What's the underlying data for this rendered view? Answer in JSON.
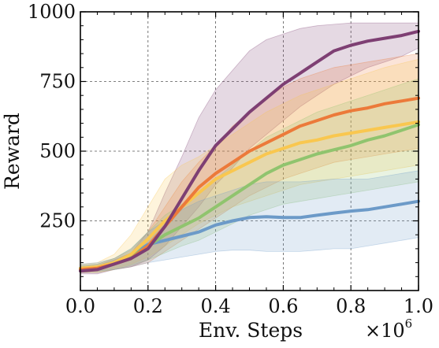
{
  "chart_data": {
    "type": "line",
    "title": "",
    "xlabel": "Env. Steps",
    "ylabel": "Reward",
    "x_multiplier_base": "×10",
    "x_multiplier_exp": "6",
    "xlim": [
      0.0,
      1.0
    ],
    "ylim": [
      0,
      1000
    ],
    "x_ticks": [
      0.0,
      0.2,
      0.4,
      0.6,
      0.8,
      1.0
    ],
    "x_tick_labels": [
      "0.0",
      "0.2",
      "0.4",
      "0.6",
      "0.8",
      "1.0"
    ],
    "y_ticks": [
      250,
      500,
      750,
      1000
    ],
    "y_tick_labels": [
      "250",
      "500",
      "750",
      "1000"
    ],
    "grid": true,
    "x": [
      0.0,
      0.05,
      0.1,
      0.15,
      0.2,
      0.25,
      0.3,
      0.35,
      0.4,
      0.45,
      0.5,
      0.55,
      0.6,
      0.65,
      0.7,
      0.75,
      0.8,
      0.85,
      0.9,
      0.95,
      1.0
    ],
    "series": [
      {
        "color": "#7e3f73",
        "values": [
          70,
          75,
          95,
          115,
          150,
          230,
          330,
          430,
          520,
          580,
          640,
          690,
          740,
          780,
          820,
          860,
          880,
          895,
          905,
          915,
          930
        ],
        "lower": [
          60,
          60,
          75,
          85,
          110,
          160,
          230,
          300,
          380,
          440,
          510,
          560,
          610,
          660,
          700,
          740,
          770,
          800,
          820,
          840,
          870
        ],
        "upper": [
          85,
          90,
          110,
          135,
          210,
          350,
          480,
          620,
          720,
          790,
          860,
          900,
          920,
          940,
          950,
          955,
          960,
          960,
          960,
          960,
          960
        ]
      },
      {
        "color": "#ec7a3a",
        "values": [
          75,
          80,
          95,
          115,
          160,
          230,
          300,
          370,
          420,
          460,
          500,
          530,
          560,
          590,
          610,
          630,
          645,
          655,
          670,
          680,
          690
        ],
        "lower": [
          65,
          65,
          75,
          85,
          100,
          140,
          180,
          220,
          260,
          300,
          340,
          370,
          400,
          420,
          440,
          460,
          470,
          480,
          490,
          500,
          510
        ],
        "upper": [
          90,
          95,
          115,
          145,
          210,
          300,
          390,
          460,
          520,
          590,
          640,
          690,
          730,
          760,
          780,
          800,
          810,
          820,
          830,
          840,
          850
        ]
      },
      {
        "color": "#f9c74f",
        "values": [
          80,
          85,
          100,
          130,
          185,
          250,
          300,
          350,
          400,
          430,
          460,
          490,
          510,
          530,
          540,
          555,
          565,
          575,
          585,
          595,
          605
        ],
        "lower": [
          70,
          70,
          80,
          95,
          120,
          160,
          200,
          240,
          270,
          300,
          320,
          340,
          360,
          380,
          390,
          400,
          410,
          420,
          430,
          440,
          450
        ],
        "upper": [
          95,
          100,
          130,
          200,
          300,
          400,
          450,
          480,
          520,
          560,
          600,
          640,
          670,
          700,
          720,
          740,
          760,
          780,
          800,
          815,
          830
        ]
      },
      {
        "color": "#90c46e",
        "values": [
          75,
          80,
          95,
          120,
          160,
          200,
          230,
          260,
          300,
          340,
          380,
          420,
          450,
          470,
          490,
          505,
          520,
          540,
          555,
          575,
          595
        ],
        "lower": [
          65,
          65,
          75,
          90,
          110,
          135,
          160,
          180,
          210,
          240,
          270,
          290,
          310,
          320,
          330,
          340,
          350,
          360,
          370,
          380,
          390
        ],
        "upper": [
          90,
          95,
          115,
          150,
          210,
          270,
          310,
          350,
          400,
          450,
          500,
          550,
          580,
          610,
          640,
          660,
          680,
          700,
          720,
          740,
          760
        ]
      },
      {
        "color": "#6c9ac8",
        "values": [
          80,
          85,
          100,
          125,
          165,
          180,
          195,
          210,
          235,
          250,
          262,
          265,
          262,
          262,
          270,
          278,
          285,
          290,
          300,
          310,
          320
        ],
        "lower": [
          70,
          70,
          75,
          85,
          100,
          110,
          120,
          130,
          140,
          145,
          145,
          140,
          140,
          140,
          145,
          150,
          150,
          160,
          170,
          180,
          190
        ],
        "upper": [
          95,
          100,
          115,
          150,
          210,
          250,
          290,
          320,
          340,
          360,
          380,
          390,
          390,
          390,
          395,
          400,
          400,
          400,
          410,
          420,
          430
        ]
      }
    ]
  }
}
